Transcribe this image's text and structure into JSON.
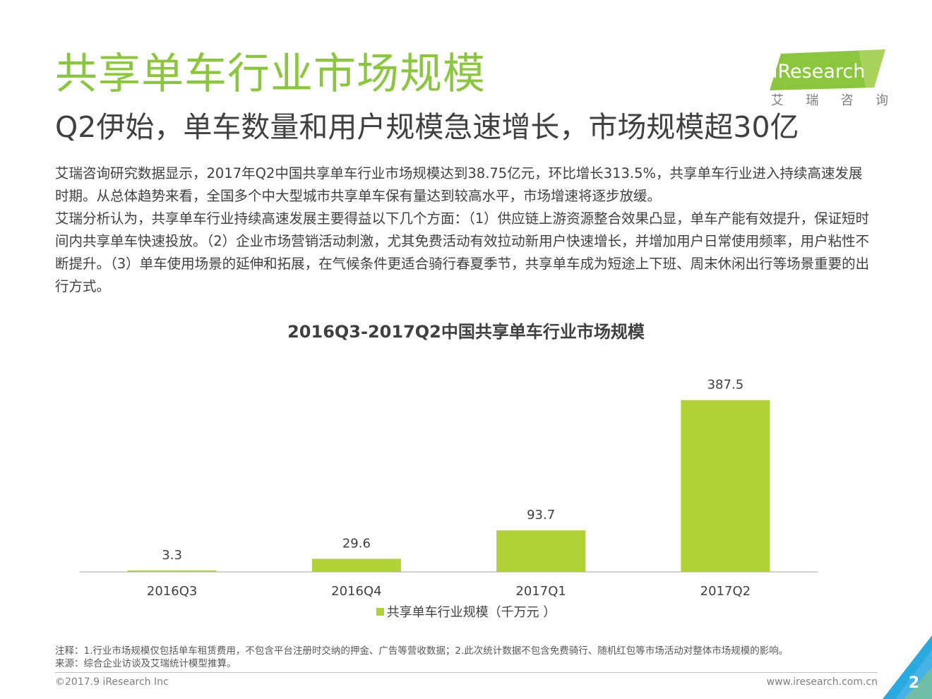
{
  "header": {
    "title": "共享单车行业市场规模",
    "subtitle": "Q2伊始，单车数量和用户规模急速增长，市场规模超30亿"
  },
  "logo": {
    "brand": "iResearch",
    "cn_chars": [
      "艾",
      "瑞",
      "咨",
      "询"
    ],
    "colors": {
      "green": "#8cc63f",
      "light_green": "#c8e06a"
    }
  },
  "body": {
    "paragraph_1": "艾瑞咨询研究数据显示，2017年Q2中国共享单车行业市场规模达到38.75亿元，环比增长313.5%，共享单车行业进入持续高速发展时期。从总体趋势来看，全国多个中大型城市共享单车保有量达到较高水平，市场增速将逐步放缓。",
    "paragraph_2": "艾瑞分析认为，共享单车行业持续高速发展主要得益以下几个方面：（1）供应链上游资源整合效果凸显，单车产能有效提升，保证短时间内共享单车快速投放。（2）企业市场营销活动刺激，尤其免费活动有效拉动新用户快速增长，并增加用户日常使用频率，用户粘性不断提升。（3）单车使用场景的延伸和拓展，在气候条件更适合骑行春夏季节，共享单车成为短途上下班、周末休闲出行等场景重要的出行方式。"
  },
  "chart_data": {
    "type": "bar",
    "title": "2016Q3-2017Q2中国共享单车行业市场规模",
    "categories": [
      "2016Q3",
      "2016Q4",
      "2017Q1",
      "2017Q2"
    ],
    "series": [
      {
        "name": "共享单车行业规模（千万元 ）",
        "values": [
          3.3,
          29.6,
          93.7,
          387.5
        ],
        "color": "#b0d236"
      }
    ],
    "data_labels": [
      "3.3",
      "29.6",
      "93.7",
      "387.5"
    ],
    "ylim": [
      0,
      430
    ],
    "grid": false,
    "legend_position": "bottom-center"
  },
  "footer": {
    "note": "注释：1.行业市场规模仅包括单车租赁费用，不包含平台注册时交纳的押金、广告等营收数据；2.此次统计数据不包含免费骑行、随机红包等市场活动对整体市场规模的影响。",
    "source": "来源：综合企业访谈及艾瑞统计模型推算。",
    "copyright": "©2017.9 iResearch Inc",
    "website": "www.iresearch.com.cn",
    "page_number": "2"
  },
  "colors": {
    "title_green": "#8cc63f",
    "bar_green": "#b0d236",
    "corner_blue": "#29abe2",
    "corner_green": "#8cc63f"
  }
}
